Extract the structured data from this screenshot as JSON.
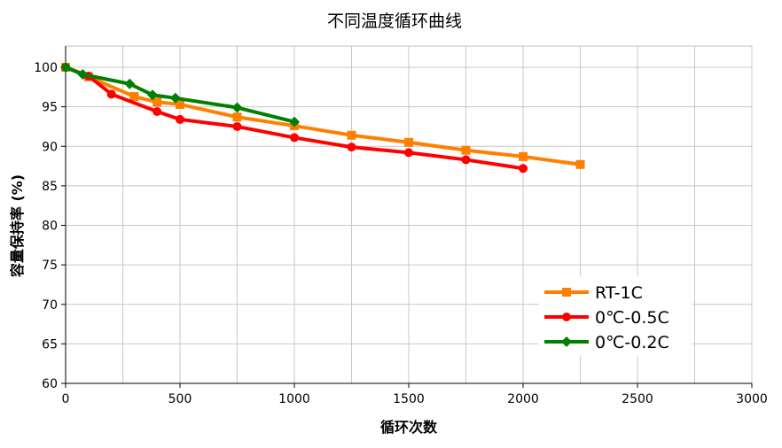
{
  "chart_data": {
    "type": "line",
    "title": "不同温度循环曲线",
    "xlabel": "循环次数",
    "ylabel": "容量保持率 (%)",
    "xlim": [
      0,
      3000
    ],
    "ylim": [
      60,
      100
    ],
    "xticks": [
      0,
      500,
      1000,
      1500,
      2000,
      2500,
      3000
    ],
    "yticks": [
      60,
      65,
      70,
      75,
      80,
      85,
      90,
      95,
      100
    ],
    "x_minor_grid_step": 250,
    "grid": true,
    "legend_position": "bottom-right",
    "series": [
      {
        "name": "RT-1C",
        "color": "#ff8000",
        "marker": "square",
        "x": [
          0,
          100,
          300,
          400,
          500,
          750,
          1000,
          1250,
          1500,
          1750,
          2000,
          2250
        ],
        "y": [
          100,
          98.8,
          96.3,
          95.6,
          95.3,
          93.7,
          92.6,
          91.4,
          90.5,
          89.5,
          88.7,
          87.7
        ]
      },
      {
        "name": "0℃-0.5C",
        "color": "#ff0000",
        "marker": "circle",
        "x": [
          0,
          100,
          200,
          400,
          500,
          750,
          1000,
          1250,
          1500,
          1750,
          2000
        ],
        "y": [
          100,
          98.9,
          96.6,
          94.4,
          93.4,
          92.5,
          91.1,
          89.9,
          89.2,
          88.3,
          87.2
        ]
      },
      {
        "name": "0℃-0.2C",
        "color": "#008000",
        "marker": "diamond",
        "x": [
          0,
          75,
          280,
          380,
          480,
          750,
          1000
        ],
        "y": [
          100,
          99.1,
          97.9,
          96.5,
          96.1,
          94.9,
          93.1
        ]
      }
    ]
  }
}
